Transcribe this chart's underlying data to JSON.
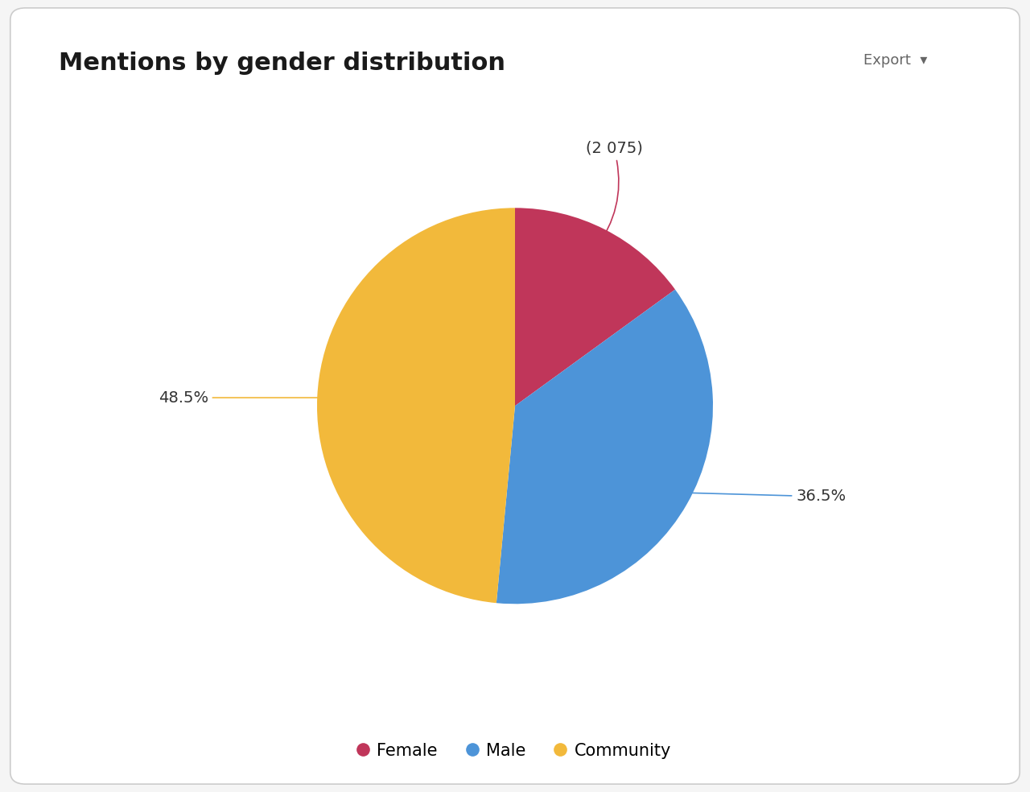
{
  "title": "Mentions by gender distribution",
  "slices": [
    {
      "label": "Female",
      "value": 15.0,
      "color": "#C0365A",
      "annotation": "(2 075)"
    },
    {
      "label": "Male",
      "value": 36.5,
      "color": "#4D94D8",
      "annotation": "36.5%"
    },
    {
      "label": "Community",
      "value": 48.5,
      "color": "#F2B93B",
      "annotation": "48.5%"
    }
  ],
  "background_color": "#F5F5F5",
  "card_background": "#FFFFFF",
  "card_edge_color": "#CCCCCC",
  "title_fontsize": 22,
  "title_color": "#1a1a1a",
  "legend_fontsize": 15,
  "annotation_fontsize": 14,
  "export_button_text": "Export  ▾"
}
